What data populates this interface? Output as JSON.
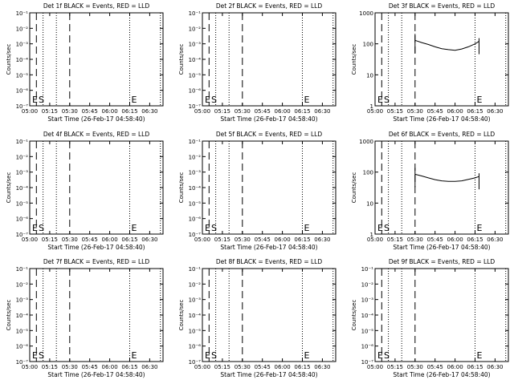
{
  "shared_axes": {
    "xlabel": "Start Time (26-Feb-17 04:58:40)",
    "ylabel": "Counts/sec",
    "x_tick_labels": [
      "05:00",
      "05:15",
      "05:30",
      "05:45",
      "06:00",
      "06:15",
      "06:30"
    ],
    "x_range": [
      "05:00",
      "06:40"
    ],
    "y_scale": "log",
    "marker_S": "S",
    "marker_E": "E",
    "vertical_dashed_lines": [
      "05:05",
      "05:30"
    ],
    "vertical_dotted_lines": [
      "05:10",
      "05:20",
      "06:15",
      "06:38"
    ]
  },
  "chart_data": [
    {
      "type": "line",
      "title": "Det 1f BLACK = Events, RED = LLD",
      "ylim": [
        1e-07,
        0.1
      ],
      "y_tick_labels": [
        "10⁻⁷",
        "10⁻⁶",
        "10⁻⁵",
        "10⁻⁴",
        "10⁻³",
        "10⁻²",
        "10⁻¹"
      ],
      "series": []
    },
    {
      "type": "line",
      "title": "Det 2f BLACK = Events, RED = LLD",
      "ylim": [
        1e-07,
        0.1
      ],
      "y_tick_labels": [
        "10⁻⁷",
        "10⁻⁶",
        "10⁻⁵",
        "10⁻⁴",
        "10⁻³",
        "10⁻²",
        "10⁻¹"
      ],
      "series": []
    },
    {
      "type": "line",
      "title": "Det 3f BLACK = Events, RED = LLD",
      "ylim": [
        1,
        1000
      ],
      "y_tick_labels": [
        "1",
        "10",
        "100",
        "1000"
      ],
      "series": [
        {
          "color": "#000000",
          "x": [
            "05:30",
            "05:35",
            "05:40",
            "05:45",
            "05:50",
            "05:55",
            "06:00",
            "06:05",
            "06:10",
            "06:15",
            "06:18"
          ],
          "values": [
            130,
            110,
            95,
            80,
            70,
            65,
            62,
            68,
            80,
            100,
            120
          ]
        }
      ]
    },
    {
      "type": "line",
      "title": "Det 4f BLACK = Events, RED = LLD",
      "ylim": [
        1e-07,
        0.1
      ],
      "y_tick_labels": [
        "10⁻⁷",
        "10⁻⁶",
        "10⁻⁵",
        "10⁻⁴",
        "10⁻³",
        "10⁻²",
        "10⁻¹"
      ],
      "series": []
    },
    {
      "type": "line",
      "title": "Det 5f BLACK = Events, RED = LLD",
      "ylim": [
        1e-07,
        0.1
      ],
      "y_tick_labels": [
        "10⁻⁷",
        "10⁻⁶",
        "10⁻⁵",
        "10⁻⁴",
        "10⁻³",
        "10⁻²",
        "10⁻¹"
      ],
      "series": []
    },
    {
      "type": "line",
      "title": "Det 6f BLACK = Events, RED = LLD",
      "ylim": [
        1,
        1000
      ],
      "y_tick_labels": [
        "1",
        "10",
        "100",
        "1000"
      ],
      "series": [
        {
          "color": "#000000",
          "x": [
            "05:30",
            "05:35",
            "05:40",
            "05:45",
            "05:50",
            "05:55",
            "06:00",
            "06:05",
            "06:10",
            "06:15",
            "06:18"
          ],
          "values": [
            85,
            75,
            65,
            57,
            52,
            50,
            50,
            52,
            58,
            65,
            72
          ]
        }
      ]
    },
    {
      "type": "line",
      "title": "Det 7f BLACK = Events, RED = LLD",
      "ylim": [
        1e-07,
        0.1
      ],
      "y_tick_labels": [
        "10⁻⁷",
        "10⁻⁶",
        "10⁻⁵",
        "10⁻⁴",
        "10⁻³",
        "10⁻²",
        "10⁻¹"
      ],
      "series": []
    },
    {
      "type": "line",
      "title": "Det 8f BLACK = Events, RED = LLD",
      "ylim": [
        1e-07,
        0.1
      ],
      "y_tick_labels": [
        "10⁻⁷",
        "10⁻⁶",
        "10⁻⁵",
        "10⁻⁴",
        "10⁻³",
        "10⁻²",
        "10⁻¹"
      ],
      "series": []
    },
    {
      "type": "line",
      "title": "Det 9f BLACK = Events, RED = LLD",
      "ylim": [
        1e-07,
        0.1
      ],
      "y_tick_labels": [
        "10⁻⁷",
        "10⁻⁶",
        "10⁻⁵",
        "10⁻⁴",
        "10⁻³",
        "10⁻²",
        "10⁻¹"
      ],
      "series": []
    }
  ]
}
